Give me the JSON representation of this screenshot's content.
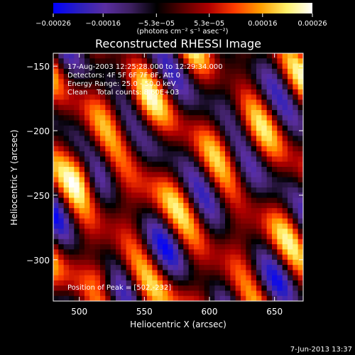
{
  "chart_data": {
    "type": "heatmap",
    "title": "Reconstructed RHESSI Image",
    "xlabel": "Heliocentric X (arcsec)",
    "ylabel": "Heliocentric Y (arcsec)",
    "xlim": [
      480,
      672
    ],
    "ylim": [
      -332,
      -140
    ],
    "x_ticks": [
      500,
      550,
      600,
      650
    ],
    "y_ticks": [
      -150,
      -200,
      -250,
      -300
    ],
    "x_tick_labels": [
      "500",
      "550",
      "600",
      "650"
    ],
    "y_tick_labels": [
      "−150",
      "−200",
      "−250",
      "−300"
    ],
    "colorbar": {
      "ticks": [
        -0.00026,
        -0.00016,
        -5.3e-05,
        5.3e-05,
        0.00016,
        0.00026
      ],
      "tick_labels": [
        "−0.00026",
        "−0.00016",
        "−5.3e−05",
        "5.3e−05",
        "0.00016",
        "0.00026"
      ],
      "range": [
        -0.00026,
        0.00026
      ],
      "unit_label": "(photons cm⁻² s⁻¹ asec⁻²)"
    },
    "annotations": [
      "17-Aug-2003 12:25:28.000 to 12:29:34.000",
      "Detectors: 4F 5F 6F 7F 8F, Att 0",
      "Energy Range: 25.0 - 50.0 keV",
      "Clean    Total counts: 8.60E+03"
    ],
    "peak_label": "Position of Peak = [502,-232]",
    "peak": [
      502,
      -232
    ],
    "footer": "7-Jun-2013 13:37",
    "colormap": [
      "#0000ff",
      "#2b1fbf",
      "#5a2ea2",
      "#3d2060",
      "#000000",
      "#5a0000",
      "#b00000",
      "#ff3c00",
      "#ff9e00",
      "#fff06a",
      "#ffffff"
    ]
  }
}
